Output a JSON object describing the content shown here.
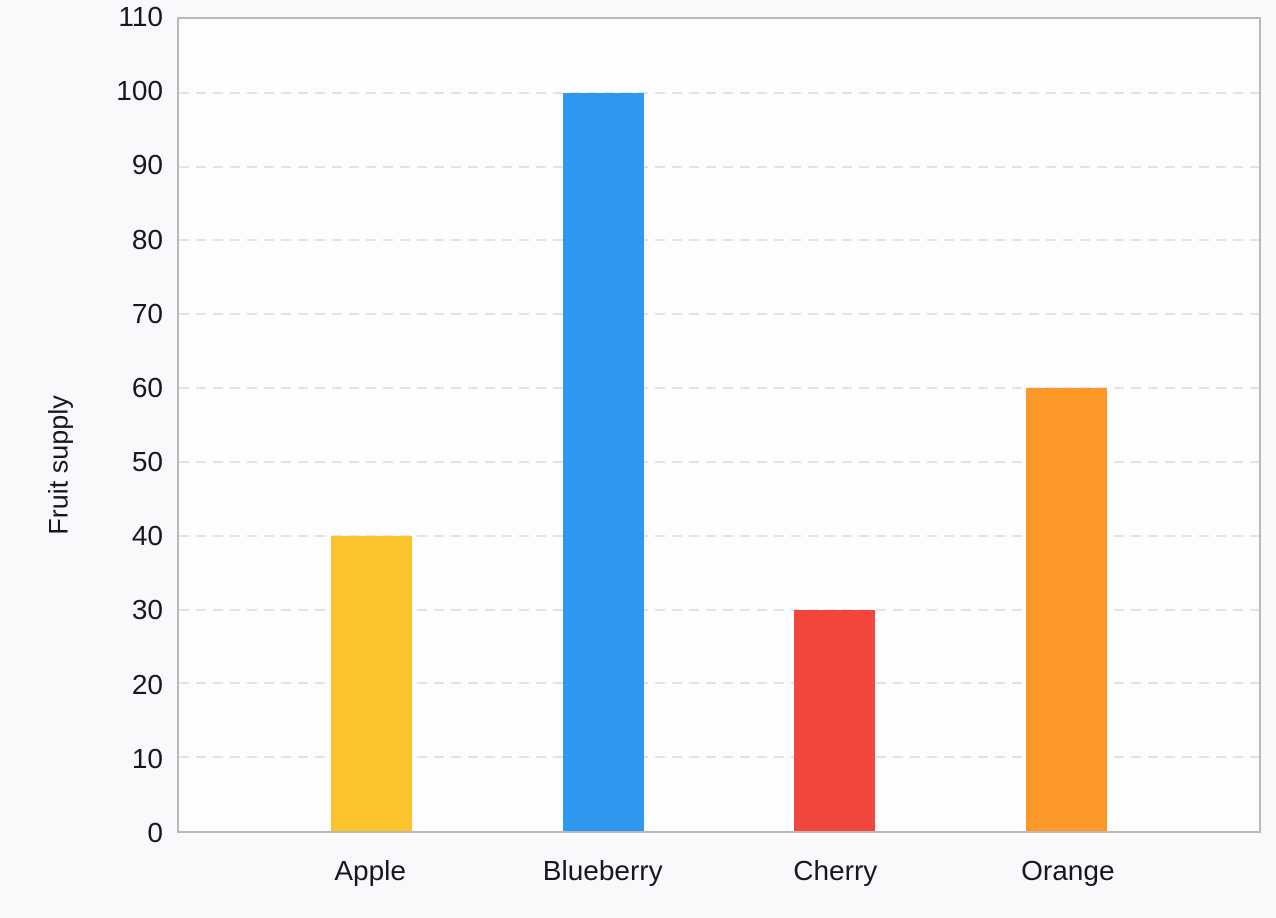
{
  "chart_data": {
    "type": "bar",
    "title": "",
    "xlabel": "",
    "ylabel": "Fruit supply",
    "categories": [
      "Apple",
      "Blueberry",
      "Cherry",
      "Orange"
    ],
    "values": [
      40,
      100,
      30,
      60
    ],
    "bar_colors": [
      "#fcc32d",
      "#2e97f0",
      "#f2453d",
      "#fb9827"
    ],
    "ylim": [
      0,
      110
    ],
    "ytick_step": 10,
    "yticks": [
      0,
      10,
      20,
      30,
      40,
      50,
      60,
      70,
      80,
      90,
      100,
      110
    ],
    "grid": "horizontal-dashed",
    "legend_position": "none"
  },
  "theme": {
    "page_background": "#f8f9fb",
    "plot_background": "#fdfdff",
    "axis_border_color": "#b9b9b9",
    "gridline_color": "#e3e3e3",
    "text_color": "#16181d"
  }
}
